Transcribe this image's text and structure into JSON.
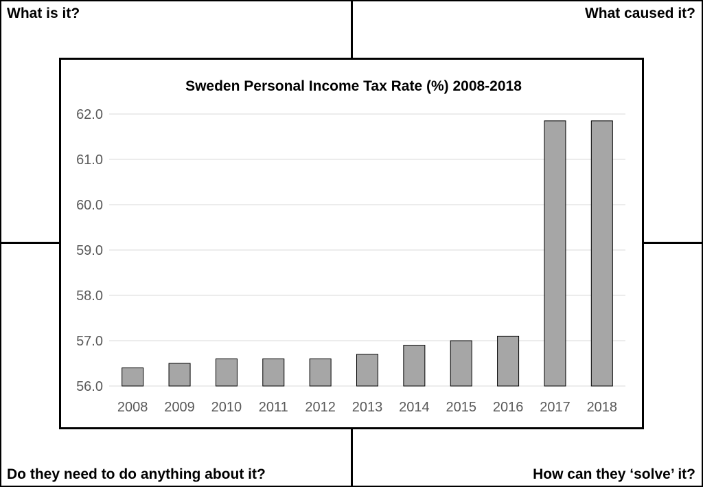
{
  "quadrants": {
    "top_left": "What is it?",
    "top_right": "What caused it?",
    "bottom_left": "Do they need to do anything about it?",
    "bottom_right": "How can they ‘solve’ it?"
  },
  "chart_data": {
    "type": "bar",
    "title": "Sweden Personal Income Tax Rate (%) 2008-2018",
    "xlabel": "",
    "ylabel": "",
    "categories": [
      "2008",
      "2009",
      "2010",
      "2011",
      "2012",
      "2013",
      "2014",
      "2015",
      "2016",
      "2017",
      "2018"
    ],
    "values": [
      56.4,
      56.5,
      56.6,
      56.6,
      56.6,
      56.7,
      56.9,
      57.0,
      57.1,
      61.85,
      61.85
    ],
    "ylim": [
      56.0,
      62.0
    ],
    "yticks": [
      "56.0",
      "57.0",
      "58.0",
      "59.0",
      "60.0",
      "61.0",
      "62.0"
    ],
    "grid": true,
    "bar_color": "#a6a6a6",
    "bar_edge_color": "#000000",
    "grid_color": "#d9d9d9",
    "tick_label_color": "#595959"
  }
}
